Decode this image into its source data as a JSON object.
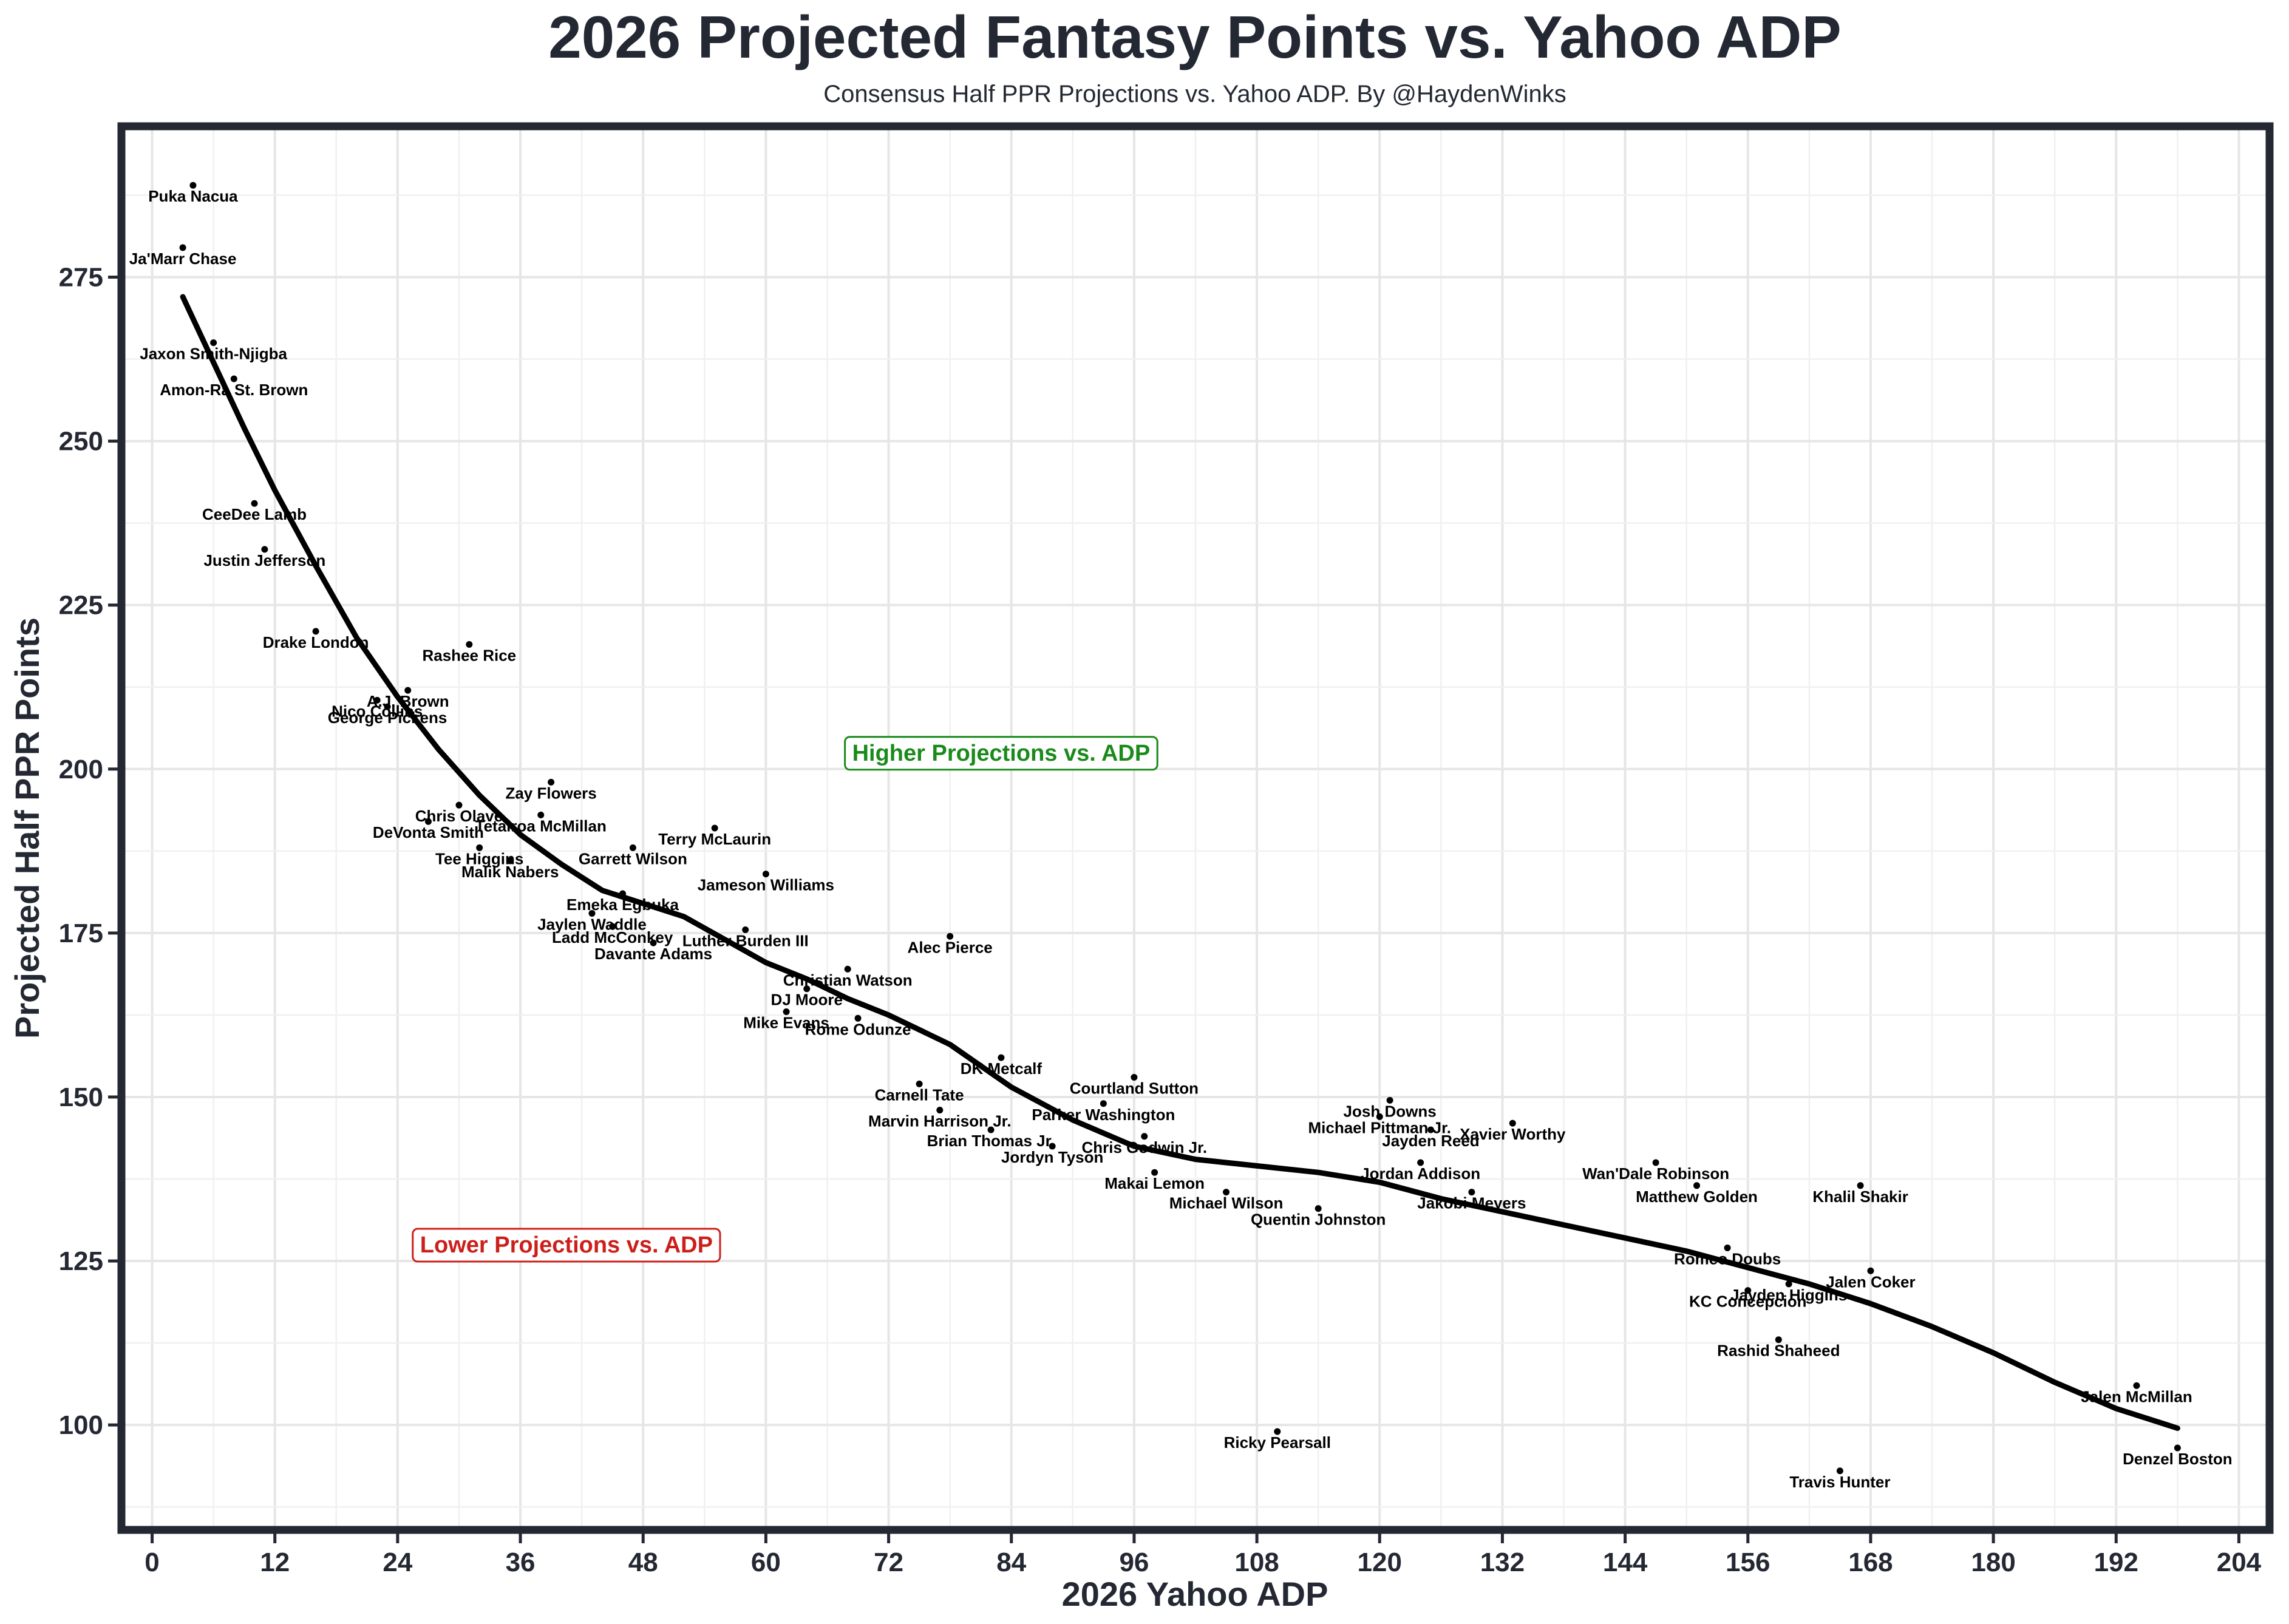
{
  "chart_data": {
    "type": "scatter",
    "title": "2026 Projected Fantasy Points vs. Yahoo ADP",
    "subtitle": "Consensus Half PPR Projections vs. Yahoo ADP. By @HaydenWinks",
    "xlabel": "2026 Yahoo ADP",
    "ylabel": "Projected Half PPR Points",
    "xlim": [
      -3,
      207
    ],
    "ylim": [
      84,
      298
    ],
    "xticks": [
      0,
      12,
      24,
      36,
      48,
      60,
      72,
      84,
      96,
      108,
      120,
      132,
      144,
      156,
      168,
      180,
      192,
      204
    ],
    "yticks": [
      100,
      125,
      150,
      175,
      200,
      225,
      250,
      275
    ],
    "grid": true,
    "points": [
      {
        "name": "Puka Nacua",
        "x": 4,
        "y": 289
      },
      {
        "name": "Ja'Marr Chase",
        "x": 3,
        "y": 279.5
      },
      {
        "name": "Jaxon Smith-Njigba",
        "x": 6,
        "y": 265
      },
      {
        "name": "Amon-Ra St. Brown",
        "x": 8,
        "y": 259.5
      },
      {
        "name": "CeeDee Lamb",
        "x": 10,
        "y": 240.5
      },
      {
        "name": "Justin Jefferson",
        "x": 11,
        "y": 233.5
      },
      {
        "name": "Drake London",
        "x": 16,
        "y": 221
      },
      {
        "name": "Rashee Rice",
        "x": 31,
        "y": 219
      },
      {
        "name": "Nico Collins",
        "x": 22,
        "y": 210.5
      },
      {
        "name": "A.J. Brown",
        "x": 25,
        "y": 212
      },
      {
        "name": "George Pickens",
        "x": 23,
        "y": 209.5
      },
      {
        "name": "Zay Flowers",
        "x": 39,
        "y": 198
      },
      {
        "name": "Chris Olave",
        "x": 30,
        "y": 194.5
      },
      {
        "name": "DeVonta Smith",
        "x": 27,
        "y": 192
      },
      {
        "name": "Tetairoa McMillan",
        "x": 38,
        "y": 193
      },
      {
        "name": "Tee Higgins",
        "x": 32,
        "y": 188
      },
      {
        "name": "Terry McLaurin",
        "x": 55,
        "y": 191
      },
      {
        "name": "Garrett Wilson",
        "x": 47,
        "y": 188
      },
      {
        "name": "Malik Nabers",
        "x": 35,
        "y": 186
      },
      {
        "name": "Jameson Williams",
        "x": 60,
        "y": 184
      },
      {
        "name": "Emeka Egbuka",
        "x": 46,
        "y": 181
      },
      {
        "name": "Jaylen Waddle",
        "x": 43,
        "y": 178
      },
      {
        "name": "Ladd McConkey",
        "x": 45,
        "y": 176
      },
      {
        "name": "Luther Burden III",
        "x": 58,
        "y": 175.5
      },
      {
        "name": "Alec Pierce",
        "x": 78,
        "y": 174.5
      },
      {
        "name": "Davante Adams",
        "x": 49,
        "y": 173.5
      },
      {
        "name": "Christian Watson",
        "x": 68,
        "y": 169.5
      },
      {
        "name": "DJ Moore",
        "x": 64,
        "y": 166.5
      },
      {
        "name": "Mike Evans",
        "x": 62,
        "y": 163
      },
      {
        "name": "Rome Odunze",
        "x": 69,
        "y": 162
      },
      {
        "name": "DK Metcalf",
        "x": 83,
        "y": 156
      },
      {
        "name": "Carnell Tate",
        "x": 75,
        "y": 152
      },
      {
        "name": "Courtland Sutton",
        "x": 96,
        "y": 153
      },
      {
        "name": "Marvin Harrison Jr.",
        "x": 77,
        "y": 148
      },
      {
        "name": "Parker Washington",
        "x": 93,
        "y": 149
      },
      {
        "name": "Brian Thomas Jr.",
        "x": 82,
        "y": 145
      },
      {
        "name": "Chris Godwin Jr.",
        "x": 97,
        "y": 144
      },
      {
        "name": "Jordyn Tyson",
        "x": 88,
        "y": 142.5
      },
      {
        "name": "Michael Pittman Jr.",
        "x": 120,
        "y": 147
      },
      {
        "name": "Josh Downs",
        "x": 121,
        "y": 149.5
      },
      {
        "name": "Xavier Worthy",
        "x": 133,
        "y": 146
      },
      {
        "name": "Jayden Reed",
        "x": 125,
        "y": 145
      },
      {
        "name": "Jordan Addison",
        "x": 124,
        "y": 140
      },
      {
        "name": "Makai Lemon",
        "x": 98,
        "y": 138.5
      },
      {
        "name": "Michael Wilson",
        "x": 105,
        "y": 135.5
      },
      {
        "name": "Quentin Johnston",
        "x": 114,
        "y": 133
      },
      {
        "name": "Jakobi Meyers",
        "x": 129,
        "y": 135.5
      },
      {
        "name": "Wan'Dale Robinson",
        "x": 147,
        "y": 140
      },
      {
        "name": "Matthew Golden",
        "x": 151,
        "y": 136.5
      },
      {
        "name": "Khalil Shakir",
        "x": 167,
        "y": 136.5
      },
      {
        "name": "Romeo Doubs",
        "x": 154,
        "y": 127
      },
      {
        "name": "Jayden Higgins",
        "x": 160,
        "y": 121.5
      },
      {
        "name": "Jalen Coker",
        "x": 168,
        "y": 123.5
      },
      {
        "name": "KC Concepcion",
        "x": 156,
        "y": 120.5
      },
      {
        "name": "Rashid Shaheed",
        "x": 159,
        "y": 113
      },
      {
        "name": "Jalen McMillan",
        "x": 194,
        "y": 106
      },
      {
        "name": "Ricky Pearsall",
        "x": 110,
        "y": 99
      },
      {
        "name": "Travis Hunter",
        "x": 165,
        "y": 93
      },
      {
        "name": "Denzel Boston",
        "x": 198,
        "y": 96.5
      }
    ],
    "trend_line": [
      {
        "x": 3,
        "y": 272
      },
      {
        "x": 6,
        "y": 262
      },
      {
        "x": 9,
        "y": 252
      },
      {
        "x": 12,
        "y": 242.5
      },
      {
        "x": 16,
        "y": 231
      },
      {
        "x": 20,
        "y": 220
      },
      {
        "x": 24,
        "y": 211
      },
      {
        "x": 28,
        "y": 203
      },
      {
        "x": 32,
        "y": 196
      },
      {
        "x": 36,
        "y": 190
      },
      {
        "x": 40,
        "y": 185.5
      },
      {
        "x": 44,
        "y": 181.5
      },
      {
        "x": 48,
        "y": 179.5
      },
      {
        "x": 52,
        "y": 177.5
      },
      {
        "x": 56,
        "y": 174
      },
      {
        "x": 60,
        "y": 170.5
      },
      {
        "x": 64,
        "y": 168
      },
      {
        "x": 68,
        "y": 165
      },
      {
        "x": 72,
        "y": 162.5
      },
      {
        "x": 78,
        "y": 158
      },
      {
        "x": 84,
        "y": 151.5
      },
      {
        "x": 90,
        "y": 146.5
      },
      {
        "x": 96,
        "y": 142.5
      },
      {
        "x": 102,
        "y": 140.5
      },
      {
        "x": 108,
        "y": 139.5
      },
      {
        "x": 114,
        "y": 138.5
      },
      {
        "x": 120,
        "y": 137
      },
      {
        "x": 126,
        "y": 134.5
      },
      {
        "x": 132,
        "y": 132.5
      },
      {
        "x": 138,
        "y": 130.5
      },
      {
        "x": 144,
        "y": 128.5
      },
      {
        "x": 150,
        "y": 126.5
      },
      {
        "x": 156,
        "y": 124
      },
      {
        "x": 162,
        "y": 121.5
      },
      {
        "x": 168,
        "y": 118.5
      },
      {
        "x": 174,
        "y": 115
      },
      {
        "x": 180,
        "y": 111
      },
      {
        "x": 186,
        "y": 106.5
      },
      {
        "x": 192,
        "y": 102.5
      },
      {
        "x": 198,
        "y": 99.5
      }
    ],
    "annotations": [
      {
        "text": "Higher Projections vs. ADP",
        "x": 83,
        "y": 202.5,
        "color": "#1a8a1a"
      },
      {
        "text": "Lower Projections vs. ADP",
        "x": 40.5,
        "y": 127.5,
        "color": "#cc1f1a"
      }
    ]
  }
}
